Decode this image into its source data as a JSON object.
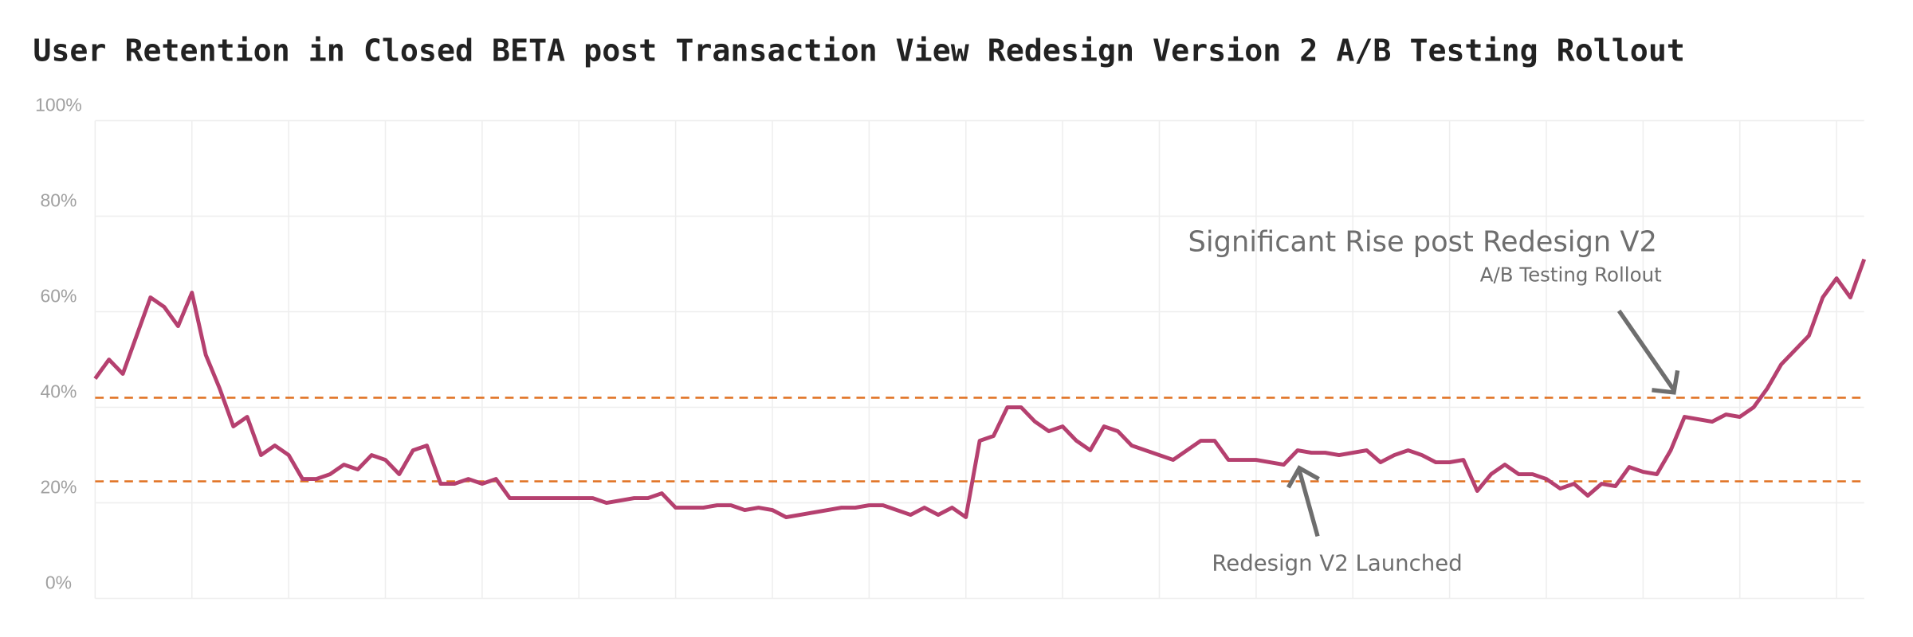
{
  "chart_data": {
    "type": "line",
    "title": "User Retention in Closed BETA post Transaction View Redesign Version 2 A/B Testing Rollout",
    "series": [
      {
        "name": "User Retention",
        "color": "#b5406f",
        "values": [
          46,
          50,
          47,
          55,
          63,
          61,
          57,
          64,
          51,
          44,
          36,
          38,
          30,
          32,
          30,
          25,
          25,
          26,
          28,
          27,
          30,
          29,
          26,
          31,
          32,
          24,
          24,
          25,
          24,
          25,
          21,
          21,
          21,
          21,
          21,
          21,
          21,
          20,
          20.5,
          21,
          21,
          22,
          19,
          19,
          19,
          19.5,
          19.5,
          18.5,
          19,
          18.5,
          17,
          17.5,
          18,
          18.5,
          19,
          19,
          19.5,
          19.5,
          18.5,
          17.5,
          19,
          17.5,
          19,
          17,
          33,
          34,
          40,
          40,
          37,
          35,
          36,
          33,
          31,
          36,
          35,
          32,
          31,
          30,
          29,
          31,
          33,
          33,
          29,
          29,
          29,
          28.5,
          28,
          31,
          30.5,
          30.5,
          30,
          30.5,
          31,
          28.5,
          30,
          31,
          30,
          28.5,
          28.5,
          29,
          22.5,
          26,
          28,
          26,
          26,
          25,
          23,
          24,
          21.5,
          24,
          23.5,
          27.5,
          26.5,
          26,
          31,
          38,
          37.5,
          37,
          38.5,
          38,
          40,
          44,
          49,
          52,
          55,
          63,
          67,
          63,
          71
        ]
      }
    ],
    "xlim": [
      0,
      128
    ],
    "xticks": [
      0,
      7,
      14,
      21,
      28,
      35,
      42,
      49,
      56,
      63,
      70,
      77,
      84,
      91,
      98,
      105,
      112,
      119,
      126
    ],
    "ylim": [
      0,
      100
    ],
    "yticks": [
      {
        "value": 0,
        "label": "0%"
      },
      {
        "value": 20,
        "label": "20%"
      },
      {
        "value": 40,
        "label": "40%"
      },
      {
        "value": 60,
        "label": "60%"
      },
      {
        "value": 80,
        "label": "80%"
      },
      {
        "value": 100,
        "label": "100%"
      }
    ],
    "grid": true,
    "reference_lines": {
      "color": "#e07020",
      "values": [
        42,
        24.5
      ]
    },
    "annotations": [
      {
        "text": "Significant Rise post Redesign V2",
        "subtext": "A/B Testing Rollout"
      },
      {
        "text": "Redesign V2 Launched"
      }
    ]
  }
}
